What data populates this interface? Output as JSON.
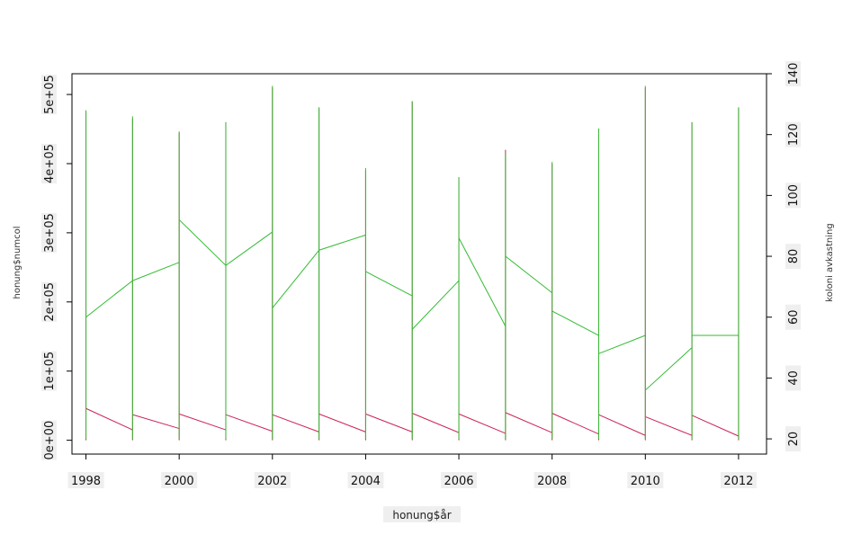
{
  "chart_data": {
    "type": "line",
    "title": "",
    "xlabel": "honung$år",
    "ylabel_left": "honung$numcol",
    "ylabel_right": "koloni avkastning",
    "xlim": [
      1997.7,
      2012.6
    ],
    "ylim_left": [
      -20000,
      530000
    ],
    "ylim_right": [
      15,
      140
    ],
    "x_ticks": [
      "1998",
      "2000",
      "2002",
      "2004",
      "2006",
      "2008",
      "2010",
      "2012"
    ],
    "y_left_ticks": [
      "0e+00",
      "1e+05",
      "2e+05",
      "3e+05",
      "4e+05",
      "5e+05"
    ],
    "y_right_ticks": [
      "20",
      "40",
      "60",
      "80",
      "100",
      "120",
      "140"
    ],
    "grid": false,
    "legend": "none",
    "series": [
      {
        "axis": "left",
        "color": "#cc2255",
        "x": [
          1998,
          1999,
          2000,
          2001,
          2002,
          2003,
          2004,
          2005,
          2006,
          2007,
          2008,
          2009,
          2010,
          2011,
          2012
        ],
        "low": [
          0,
          0,
          0,
          0,
          0,
          0,
          0,
          0,
          0,
          0,
          0,
          0,
          0,
          0,
          0
        ],
        "high": [
          475000,
          465000,
          445000,
          460000,
          510000,
          480000,
          390000,
          490000,
          380000,
          420000,
          400000,
          450000,
          510000,
          460000,
          480000
        ],
        "trend_start": [
          46000,
          37000,
          38000,
          37000,
          37000,
          38000,
          38000,
          39000,
          38000,
          40000,
          39000,
          37000,
          34000,
          36000
        ],
        "trend_end": [
          15000,
          17000,
          15000,
          13000,
          12000,
          12000,
          12000,
          11000,
          10000,
          11000,
          9000,
          7000,
          7000,
          6000
        ]
      },
      {
        "axis": "right",
        "color": "#33bb33",
        "x": [
          1998,
          1999,
          2000,
          2001,
          2002,
          2003,
          2004,
          2005,
          2006,
          2007,
          2008,
          2009,
          2010,
          2011,
          2012
        ],
        "low": [
          20,
          20,
          20,
          20,
          20,
          20,
          20,
          20,
          20,
          20,
          20,
          20,
          20,
          20,
          20
        ],
        "high": [
          128,
          126,
          121,
          124,
          136,
          129,
          109,
          131,
          106,
          114,
          111,
          122,
          136,
          124,
          129
        ],
        "trend_start": [
          60,
          72,
          92,
          77,
          63,
          82,
          75,
          56,
          86,
          80,
          62,
          48,
          36,
          54
        ],
        "trend_end": [
          72,
          78,
          77,
          88,
          82,
          87,
          67,
          72,
          57,
          68,
          54,
          54,
          50,
          54
        ]
      }
    ]
  }
}
